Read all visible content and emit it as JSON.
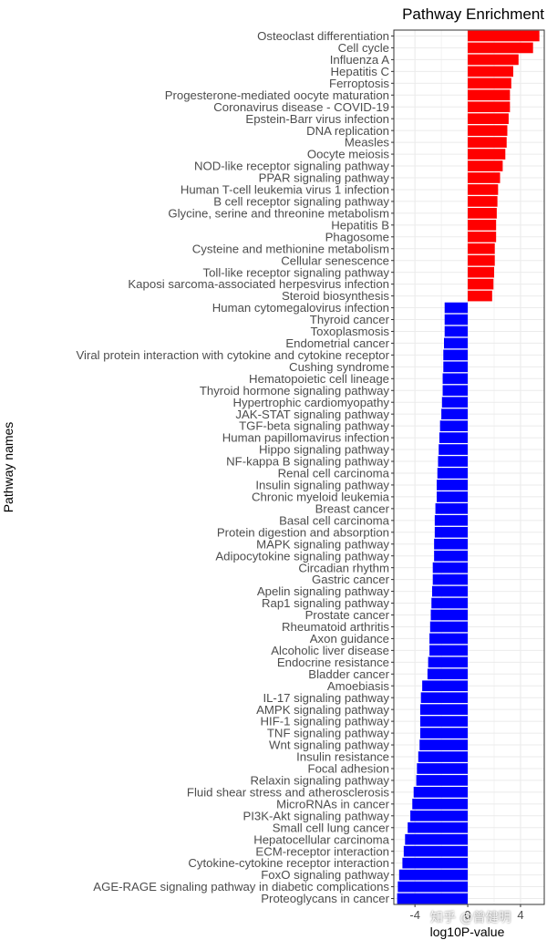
{
  "chart_data": {
    "type": "bar",
    "orientation": "horizontal",
    "title": "Pathway Enrichment",
    "xlabel": "log10P-value",
    "ylabel": "Pathway names",
    "xlim": [
      -5.6,
      5.8
    ],
    "xticks": [
      -4,
      0,
      4
    ],
    "grid": true,
    "colors": {
      "positive": "#ff0000",
      "negative": "#0000ff",
      "panel_border": "#333333",
      "grid": "#ebebeb"
    },
    "categories": [
      "Osteoclast differentiation",
      "Cell cycle",
      "Influenza A",
      "Hepatitis C",
      "Ferroptosis",
      "Progesterone-mediated oocyte maturation",
      "Coronavirus disease - COVID-19",
      "Epstein-Barr virus infection",
      "DNA replication",
      "Measles",
      "Oocyte meiosis",
      "NOD-like receptor signaling pathway",
      "PPAR signaling pathway",
      "Human T-cell leukemia virus 1 infection",
      "B cell receptor signaling pathway",
      "Glycine, serine and threonine metabolism",
      "Hepatitis B",
      "Phagosome",
      "Cysteine and methionine metabolism",
      "Cellular senescence",
      "Toll-like receptor signaling pathway",
      "Kaposi sarcoma-associated herpesvirus infection",
      "Steroid biosynthesis",
      "Human cytomegalovirus infection",
      "Thyroid cancer",
      "Toxoplasmosis",
      "Endometrial cancer",
      "Viral protein interaction with cytokine and cytokine receptor",
      "Cushing syndrome",
      "Hematopoietic cell lineage",
      "Thyroid hormone signaling pathway",
      "Hypertrophic cardiomyopathy",
      "JAK-STAT signaling pathway",
      "TGF-beta signaling pathway",
      "Human papillomavirus infection",
      "Hippo signaling pathway",
      "NF-kappa B signaling pathway",
      "Renal cell carcinoma",
      "Insulin signaling pathway",
      "Chronic myeloid leukemia",
      "Breast cancer",
      "Basal cell carcinoma",
      "Protein digestion and absorption",
      "MAPK signaling pathway",
      "Adipocytokine signaling pathway",
      "Circadian rhythm",
      "Gastric cancer",
      "Apelin signaling pathway",
      "Rap1 signaling pathway",
      "Prostate cancer",
      "Rheumatoid arthritis",
      "Axon guidance",
      "Alcoholic liver disease",
      "Endocrine resistance",
      "Bladder cancer",
      "Amoebiasis",
      "IL-17 signaling pathway",
      "AMPK signaling pathway",
      "HIF-1 signaling pathway",
      "TNF signaling pathway",
      "Wnt signaling pathway",
      "Insulin resistance",
      "Focal adhesion",
      "Relaxin signaling pathway",
      "Fluid shear stress and atherosclerosis",
      "MicroRNAs in cancer",
      "PI3K-Akt signaling pathway",
      "Small cell lung cancer",
      "Hepatocellular carcinoma",
      "ECM-receptor interaction",
      "Cytokine-cytokine receptor interaction",
      "FoxO signaling pathway",
      "AGE-RAGE signaling pathway in diabetic complications",
      "Proteoglycans in cancer"
    ],
    "values": [
      5.43,
      4.95,
      3.85,
      3.45,
      3.3,
      3.2,
      3.2,
      3.1,
      3.0,
      2.95,
      2.85,
      2.65,
      2.45,
      2.3,
      2.25,
      2.2,
      2.15,
      2.15,
      2.05,
      2.05,
      2.0,
      1.95,
      1.85,
      -1.75,
      -1.75,
      -1.75,
      -1.8,
      -1.85,
      -1.85,
      -1.9,
      -1.9,
      -1.95,
      -2.0,
      -2.1,
      -2.15,
      -2.2,
      -2.25,
      -2.3,
      -2.35,
      -2.35,
      -2.45,
      -2.5,
      -2.5,
      -2.55,
      -2.55,
      -2.65,
      -2.65,
      -2.7,
      -2.75,
      -2.8,
      -2.85,
      -2.9,
      -2.9,
      -3.0,
      -3.05,
      -3.45,
      -3.55,
      -3.6,
      -3.6,
      -3.6,
      -3.65,
      -3.75,
      -3.85,
      -3.9,
      -4.1,
      -4.2,
      -4.35,
      -4.55,
      -4.75,
      -4.85,
      -4.95,
      -5.2,
      -5.3,
      -5.35
    ]
  },
  "watermark": "知乎 @曾健明"
}
